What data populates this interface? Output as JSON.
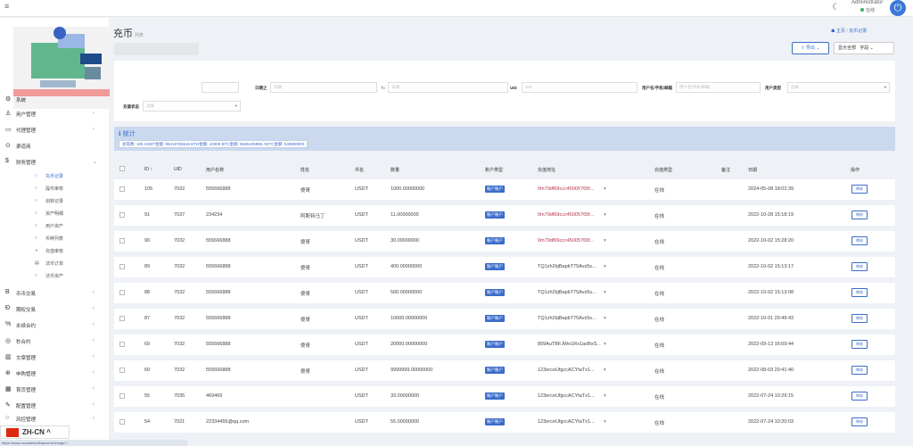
{
  "topbar": {
    "menu_icon": "≡",
    "admin_name": "Administrator",
    "admin_status": "在线"
  },
  "sidebar": {
    "menu": [
      {
        "icon": "⚙",
        "label": "系统",
        "arrow": ""
      },
      {
        "icon": "♙",
        "label": "用户管理",
        "arrow": "‹"
      },
      {
        "icon": "▭",
        "label": "代理管理",
        "arrow": "‹"
      },
      {
        "icon": "⊙",
        "label": "渠道商",
        "arrow": ""
      },
      {
        "icon": "$",
        "label": "财务管理",
        "arrow": "⌄"
      }
    ],
    "sub": [
      {
        "icon": "○",
        "label": "充币记录"
      },
      {
        "icon": "○",
        "label": "提币审核"
      },
      {
        "icon": "○",
        "label": "划转记录"
      },
      {
        "icon": "○",
        "label": "资产明细"
      },
      {
        "icon": "○",
        "label": "用户资产"
      },
      {
        "icon": "○",
        "label": "币种列表"
      },
      {
        "icon": "◑",
        "label": "充值审核"
      },
      {
        "icon": "▤",
        "label": "法币订单"
      },
      {
        "icon": "○",
        "label": "法币资产"
      }
    ],
    "menu2": [
      {
        "icon": "B",
        "label": "币币交易",
        "arrow": "‹"
      },
      {
        "icon": "Ð",
        "label": "期权交易",
        "arrow": "‹"
      },
      {
        "icon": "%",
        "label": "永续合约",
        "arrow": "‹"
      },
      {
        "icon": "◎",
        "label": "秒合约",
        "arrow": "‹"
      },
      {
        "icon": "▥",
        "label": "文章管理",
        "arrow": "‹"
      },
      {
        "icon": "⊕",
        "label": "申购管理",
        "arrow": "‹"
      },
      {
        "icon": "▦",
        "label": "首页管理",
        "arrow": "‹"
      },
      {
        "icon": "✎",
        "label": "配置管理",
        "arrow": "‹"
      },
      {
        "icon": "○",
        "label": "风控管理",
        "arrow": "‹"
      }
    ],
    "language": "ZH-CN ^"
  },
  "statusbar": {
    "url": "https://www.xxx/admin/finance/recharge?..."
  },
  "header": {
    "title": "充币",
    "subtitle": "列表",
    "breadcrumb_home": "主页",
    "breadcrumb_sep": "/",
    "breadcrumb_current": "充币记录",
    "export_label": "导出",
    "show_all_label": "显示全部",
    "field_label": "字段"
  },
  "filter": {
    "date_label": "日期之",
    "date_start_placeholder": "日期",
    "date_to": "To",
    "date_end_placeholder": "日期",
    "uid_label": "UID",
    "uid_placeholder": "UID",
    "user_label": "用户名/手机/邮箱",
    "user_placeholder": "用户名/手机/邮箱",
    "type_label": "用户类型",
    "type_placeholder": "选择",
    "status_label": "充值状态",
    "status_placeholder": "选择"
  },
  "stats": {
    "title": "统计",
    "summary": "总笔数: 105   USDT金额: 95415783616   ETH金额: 10000   BTC金额: 9535106885   AETC金额: 549800000"
  },
  "table": {
    "headers": [
      "ID ↑",
      "UID",
      "用户名称",
      "姓名",
      "币名",
      "数量",
      "账户类型",
      "充值地址",
      "充值类型",
      "备注",
      "日期",
      "操作"
    ],
    "action_label": "审核",
    "rows": [
      {
        "id": "105",
        "uid": "7032",
        "username": "555666888",
        "name": "傻哥",
        "coin": "USDT",
        "amount": "1000.00000000",
        "type": "账户账户",
        "address": "0m79df69ccc45005765f...",
        "method": "在线",
        "note": "",
        "date": "2024-05-08 18:02:39"
      },
      {
        "id": "91",
        "uid": "7037",
        "username": "234234",
        "name": "阿斯特马丁",
        "coin": "USDT",
        "amount": "11.00000000",
        "type": "账户账户",
        "address": "0m79df69ccc45005765f...",
        "method": "在线",
        "note": "",
        "date": "2022-10-28 15:18:19"
      },
      {
        "id": "90",
        "uid": "7032",
        "username": "555666888",
        "name": "傻哥",
        "coin": "USDT",
        "amount": "30.00000000",
        "type": "账户账户",
        "address": "0m79df69ccc45005765f...",
        "method": "在线",
        "note": "",
        "date": "2022-10-02 15:28:20"
      },
      {
        "id": "89",
        "uid": "7032",
        "username": "555666888",
        "name": "傻哥",
        "coin": "USDT",
        "amount": "400.00000000",
        "type": "账户账户",
        "address": "TQ1zh2bjBapbT75Avz5s...",
        "method": "在线",
        "note": "",
        "date": "2022-10-02 15:13:17"
      },
      {
        "id": "88",
        "uid": "7032",
        "username": "555666888",
        "name": "傻哥",
        "coin": "USDT",
        "amount": "500.00000000",
        "type": "账户账户",
        "address": "TQ1zh2bjBapbT75Avz5s...",
        "method": "在线",
        "note": "",
        "date": "2022-10-02 15:13:08"
      },
      {
        "id": "87",
        "uid": "7032",
        "username": "555666888",
        "name": "傻哥",
        "coin": "USDT",
        "amount": "10000.00000000",
        "type": "账户账户",
        "address": "TQ1zh2bjBapbT75Avz5s...",
        "method": "在线",
        "note": "",
        "date": "2022-10-01 20:49:43"
      },
      {
        "id": "69",
        "uid": "7032",
        "username": "555666888",
        "name": "傻哥",
        "coin": "USDT",
        "amount": "20000.00000000",
        "type": "账户账户",
        "address": "899AuTBFJWo1Rx1aoBxS...",
        "method": "在线",
        "note": "",
        "date": "2022-09-13 16:09:44"
      },
      {
        "id": "60",
        "uid": "7032",
        "username": "555666888",
        "name": "傻哥",
        "coin": "USDT",
        "amount": "9999999.00000000",
        "type": "账户账户",
        "address": "123erceUfgccACYtaTx1...",
        "method": "在线",
        "note": "",
        "date": "2022-08-03 20:41:40"
      },
      {
        "id": "55",
        "uid": "7035",
        "username": "469469",
        "name": "",
        "coin": "USDT",
        "amount": "33.00000000",
        "type": "账户账户",
        "address": "123erceUfgccACYtaTx1...",
        "method": "在线",
        "note": "",
        "date": "2022-07-24 10:29:15"
      },
      {
        "id": "54",
        "uid": "7021",
        "username": "22334455@qq.com",
        "name": "",
        "coin": "USDT",
        "amount": "55.00000000",
        "type": "账户账户",
        "address": "123erceUfgccACYtaTx1...",
        "method": "在线",
        "note": "",
        "date": "2022-07-24 10:20:03"
      }
    ]
  },
  "colors": {
    "accent": "#3b6cc9",
    "stats_bg": "#cbd9ef",
    "address_red": "#b5324c"
  }
}
